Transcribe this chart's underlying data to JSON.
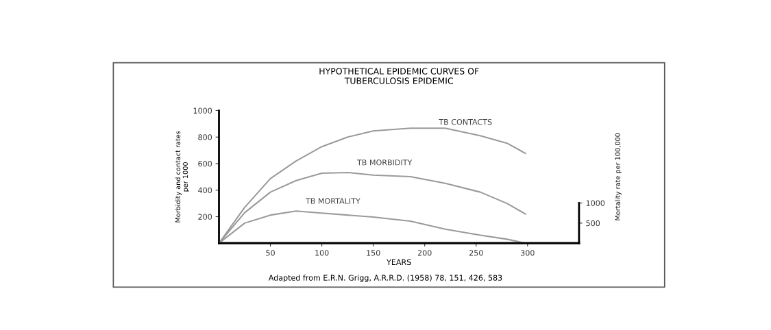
{
  "chart_data": {
    "type": "line",
    "title": "HYPOTHETICAL EPIDEMIC CURVES OF\nTUBERCULOSIS EPIDEMIC",
    "xlabel": "YEARS",
    "ylabel": "Morbidity and contact rates\nper 1000",
    "y2label": "Mortality rate per 100,000",
    "annotations": [
      "Adapted from E.R.N. Grigg, A.R.R.D. (1958) 78, 151, 426, 583"
    ],
    "x": [
      0,
      25,
      50,
      75,
      100,
      125,
      150,
      186,
      220,
      254,
      280,
      298
    ],
    "series": [
      {
        "name": "TB CONTACTS",
        "color": "#9a9a9a",
        "values": [
          0,
          270,
          487,
          620,
          728,
          800,
          846,
          867,
          867,
          810,
          754,
          677
        ]
      },
      {
        "name": "TB MORBIDITY",
        "color": "#9a9a9a",
        "values": [
          0,
          230,
          385,
          472,
          528,
          533,
          513,
          502,
          451,
          385,
          300,
          220
        ]
      },
      {
        "name": "TB MORTALITY",
        "color": "#9a9a9a",
        "axis": "y2",
        "values": [
          0,
          500,
          700,
          800,
          750,
          700,
          650,
          550,
          350,
          200,
          100,
          0
        ]
      }
    ],
    "xlim": [
      0,
      350
    ],
    "xticks": [
      50,
      100,
      150,
      200,
      250,
      300
    ],
    "ylim": [
      0,
      1000
    ],
    "yticks": [
      200,
      400,
      600,
      800,
      1000
    ],
    "y2lim": [
      0,
      3300
    ],
    "y2ticks": [
      500,
      1000
    ],
    "grid": false,
    "legend": false,
    "marker": "none",
    "line_style": "solid"
  }
}
